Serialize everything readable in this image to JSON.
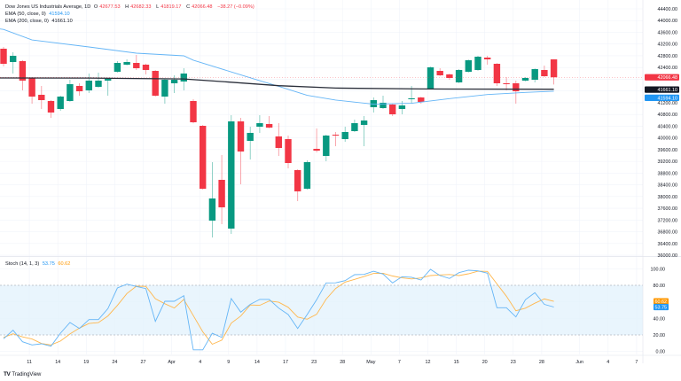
{
  "header": {
    "symbol": "Dow Jones US Industrials Average, 1D",
    "open_label": "O",
    "open": "42677.53",
    "high_label": "H",
    "high": "42682.33",
    "low_label": "L",
    "low": "41819.17",
    "close_label": "C",
    "close": "42066.48",
    "change": "−38.27 (−0.09%)"
  },
  "indicators": {
    "ema50": {
      "label": "EMA (50, close, 0)",
      "value": "41594.10",
      "color": "#64b5f6"
    },
    "ema200": {
      "label": "EMA (200, close, 0)",
      "value": "41661.10",
      "color": "#2a2e39"
    },
    "stoch": {
      "label": "Stoch (14, 1, 3)",
      "k_value": "53.75",
      "d_value": "60.62",
      "k_color": "#64b5f6",
      "d_color": "#ffb74d"
    }
  },
  "colors": {
    "up": "#089981",
    "down": "#f23645",
    "grid": "#f0f3fa",
    "band_fill": "#e3f2fd"
  },
  "price_axis": {
    "labels": [
      "44400.00",
      "44000.00",
      "43600.00",
      "43200.00",
      "42800.00",
      "42400.00",
      "41200.00",
      "40800.00",
      "40400.00",
      "40000.00",
      "39600.00",
      "39200.00",
      "38800.00",
      "38400.00",
      "38000.00",
      "37600.00",
      "37200.00",
      "36800.00",
      "36400.00",
      "36000.00"
    ],
    "badges": [
      {
        "value": "42066.48",
        "color": "#f23645"
      },
      {
        "value": "41661.10",
        "color": "#131722"
      },
      {
        "value": "41594.10",
        "color": "#2196f3"
      }
    ]
  },
  "stoch_axis": {
    "labels": [
      "100.00",
      "80.00",
      "40.00",
      "20.00",
      "0.00"
    ],
    "badges": [
      {
        "value": "60.62",
        "color": "#ff9800"
      },
      {
        "value": "53.75",
        "color": "#2196f3"
      }
    ],
    "upper_band": 80,
    "lower_band": 20
  },
  "time_axis": {
    "ticks": [
      {
        "label": "11",
        "index": 4
      },
      {
        "label": "14",
        "index": 7
      },
      {
        "label": "19",
        "index": 10
      },
      {
        "label": "24",
        "index": 13
      },
      {
        "label": "27",
        "index": 16
      },
      {
        "label": "Apr",
        "index": 19
      },
      {
        "label": "4",
        "index": 22
      },
      {
        "label": "9",
        "index": 25
      },
      {
        "label": "14",
        "index": 28
      },
      {
        "label": "17",
        "index": 31
      },
      {
        "label": "23",
        "index": 34
      },
      {
        "label": "28",
        "index": 37
      },
      {
        "label": "May",
        "index": 40
      },
      {
        "label": "7",
        "index": 43
      },
      {
        "label": "12",
        "index": 46
      },
      {
        "label": "15",
        "index": 49
      },
      {
        "label": "20",
        "index": 52
      },
      {
        "label": "23",
        "index": 55
      },
      {
        "label": "28",
        "index": 58
      },
      {
        "label": "Jun",
        "index": 62
      },
      {
        "label": "4",
        "index": 65
      },
      {
        "label": "7",
        "index": 68
      }
    ]
  },
  "chart_data": {
    "type": "candlestick",
    "ylim": [
      36000,
      44400
    ],
    "ohlc": [
      [
        43041,
        43100,
        42440,
        42527
      ],
      [
        42587,
        42920,
        42195,
        42799
      ],
      [
        42618,
        42650,
        41621,
        41953
      ],
      [
        42044,
        42070,
        41168,
        41409
      ],
      [
        41470,
        41772,
        40986,
        41288
      ],
      [
        41258,
        41290,
        40684,
        40865
      ],
      [
        40986,
        41440,
        40926,
        41409
      ],
      [
        41258,
        41983,
        41230,
        41832
      ],
      [
        41772,
        41862,
        41439,
        41590
      ],
      [
        41621,
        42195,
        41530,
        41953
      ],
      [
        41742,
        42225,
        41710,
        41953
      ],
      [
        41953,
        42040,
        41439,
        42013
      ],
      [
        42255,
        42618,
        42230,
        42557
      ],
      [
        42497,
        42678,
        42470,
        42587
      ],
      [
        42557,
        42829,
        42316,
        42376
      ],
      [
        42497,
        42530,
        42165,
        42316
      ],
      [
        42285,
        42310,
        41410,
        41439
      ],
      [
        41409,
        42010,
        41168,
        41983
      ],
      [
        41862,
        42134,
        41530,
        41983
      ],
      [
        41923,
        42376,
        41621,
        42195
      ],
      [
        41258,
        41319,
        40500,
        40533
      ],
      [
        40412,
        40440,
        38240,
        38267
      ],
      [
        37180,
        39174,
        36606,
        37935
      ],
      [
        38570,
        39415,
        37059,
        37633
      ],
      [
        36908,
        40775,
        36727,
        40563
      ],
      [
        40563,
        40684,
        38418,
        39536
      ],
      [
        39899,
        40382,
        39264,
        40171
      ],
      [
        40382,
        40775,
        40171,
        40503
      ],
      [
        40473,
        40745,
        40330,
        40352
      ],
      [
        40050,
        40503,
        39385,
        39657
      ],
      [
        39959,
        40080,
        38962,
        39143
      ],
      [
        38902,
        38930,
        37844,
        38177
      ],
      [
        38267,
        39234,
        38240,
        39174
      ],
      [
        39627,
        40322,
        39506,
        39566
      ],
      [
        39385,
        40110,
        39204,
        40080
      ],
      [
        40110,
        40201,
        39717,
        40080
      ],
      [
        39959,
        40382,
        39868,
        40201
      ],
      [
        40231,
        40624,
        40200,
        40503
      ],
      [
        40443,
        40745,
        39717,
        40594
      ],
      [
        41047,
        41379,
        40865,
        41288
      ],
      [
        41016,
        41439,
        40990,
        41198
      ],
      [
        41137,
        41160,
        40745,
        40805
      ],
      [
        40986,
        41258,
        40805,
        41107
      ],
      [
        41319,
        41772,
        41168,
        41349
      ],
      [
        41379,
        41400,
        41168,
        41228
      ],
      [
        41681,
        42430,
        41660,
        42406
      ],
      [
        42285,
        42376,
        42110,
        42134
      ],
      [
        42165,
        42190,
        41983,
        42044
      ],
      [
        41893,
        42340,
        41870,
        42316
      ],
      [
        42255,
        42670,
        42230,
        42648
      ],
      [
        42316,
        42799,
        42290,
        42769
      ],
      [
        42738,
        42799,
        42497,
        42678
      ],
      [
        42527,
        42550,
        41772,
        41862
      ],
      [
        41862,
        42074,
        41621,
        41832
      ],
      [
        41862,
        41953,
        41168,
        41590
      ],
      [
        41953,
        42074,
        41930,
        42044
      ],
      [
        41983,
        42370,
        41893,
        42346
      ],
      [
        42316,
        42466,
        42074,
        42104
      ],
      [
        42677.53,
        42682.33,
        41819.17,
        42066.48
      ]
    ],
    "ema50": [
      [
        1,
        43700
      ],
      [
        4,
        43340
      ],
      [
        10,
        43100
      ],
      [
        15,
        42890
      ],
      [
        20,
        42800
      ],
      [
        21,
        42650
      ],
      [
        25,
        42250
      ],
      [
        28,
        41950
      ],
      [
        30,
        41760
      ],
      [
        33,
        41450
      ],
      [
        36,
        41290
      ],
      [
        40,
        41150
      ],
      [
        44,
        41180
      ],
      [
        48,
        41340
      ],
      [
        52,
        41480
      ],
      [
        56,
        41550
      ],
      [
        59,
        41594.1
      ]
    ],
    "ema200": [
      [
        1,
        42044
      ],
      [
        10,
        42040
      ],
      [
        20,
        42010
      ],
      [
        25,
        41900
      ],
      [
        30,
        41780
      ],
      [
        36,
        41700
      ],
      [
        45,
        41670
      ],
      [
        59,
        41661.1
      ]
    ],
    "stoch_k": [
      15.4,
      25.7,
      11.7,
      7.9,
      9.3,
      6.4,
      22.1,
      35,
      27.8,
      38.5,
      38.5,
      51.8,
      76.8,
      81.4,
      78.6,
      76,
      36.4,
      60.7,
      60.7,
      67.5,
      2,
      2,
      22,
      17,
      64,
      47.5,
      57,
      63,
      63,
      52.5,
      44.6,
      27.8,
      44.6,
      62.5,
      82.9,
      83,
      85.7,
      92.9,
      93.2,
      97,
      93.6,
      82.9,
      90.4,
      89.8,
      86.4,
      99.3,
      91.8,
      88.2,
      95.3,
      98.2,
      97.5,
      94.7,
      52.9,
      52.9,
      41.7,
      62.5,
      71,
      57,
      53.75
    ],
    "stoch_d": [
      17,
      21.4,
      17.6,
      15.1,
      9.6,
      7.9,
      12.6,
      21.2,
      28.3,
      33.8,
      34.9,
      42.9,
      55.7,
      70,
      78.9,
      78.7,
      63.7,
      57.7,
      52.6,
      63,
      43.4,
      23.8,
      8.7,
      13.7,
      34.3,
      42.8,
      56.2,
      55.8,
      61,
      59.5,
      53.4,
      41.6,
      39,
      45,
      63.3,
      76.1,
      83.9,
      87.2,
      90.6,
      94.4,
      94.6,
      91.2,
      89,
      87.7,
      88.9,
      91.8,
      92.5,
      93.1,
      91.8,
      93.9,
      97,
      96.8,
      81.7,
      66.8,
      49.2,
      52.4,
      58.4,
      63.5,
      60.62
    ],
    "stoch_ylim": [
      0,
      100
    ]
  },
  "branding": {
    "logo_text": "TradingView",
    "logo_mark": "TV"
  }
}
